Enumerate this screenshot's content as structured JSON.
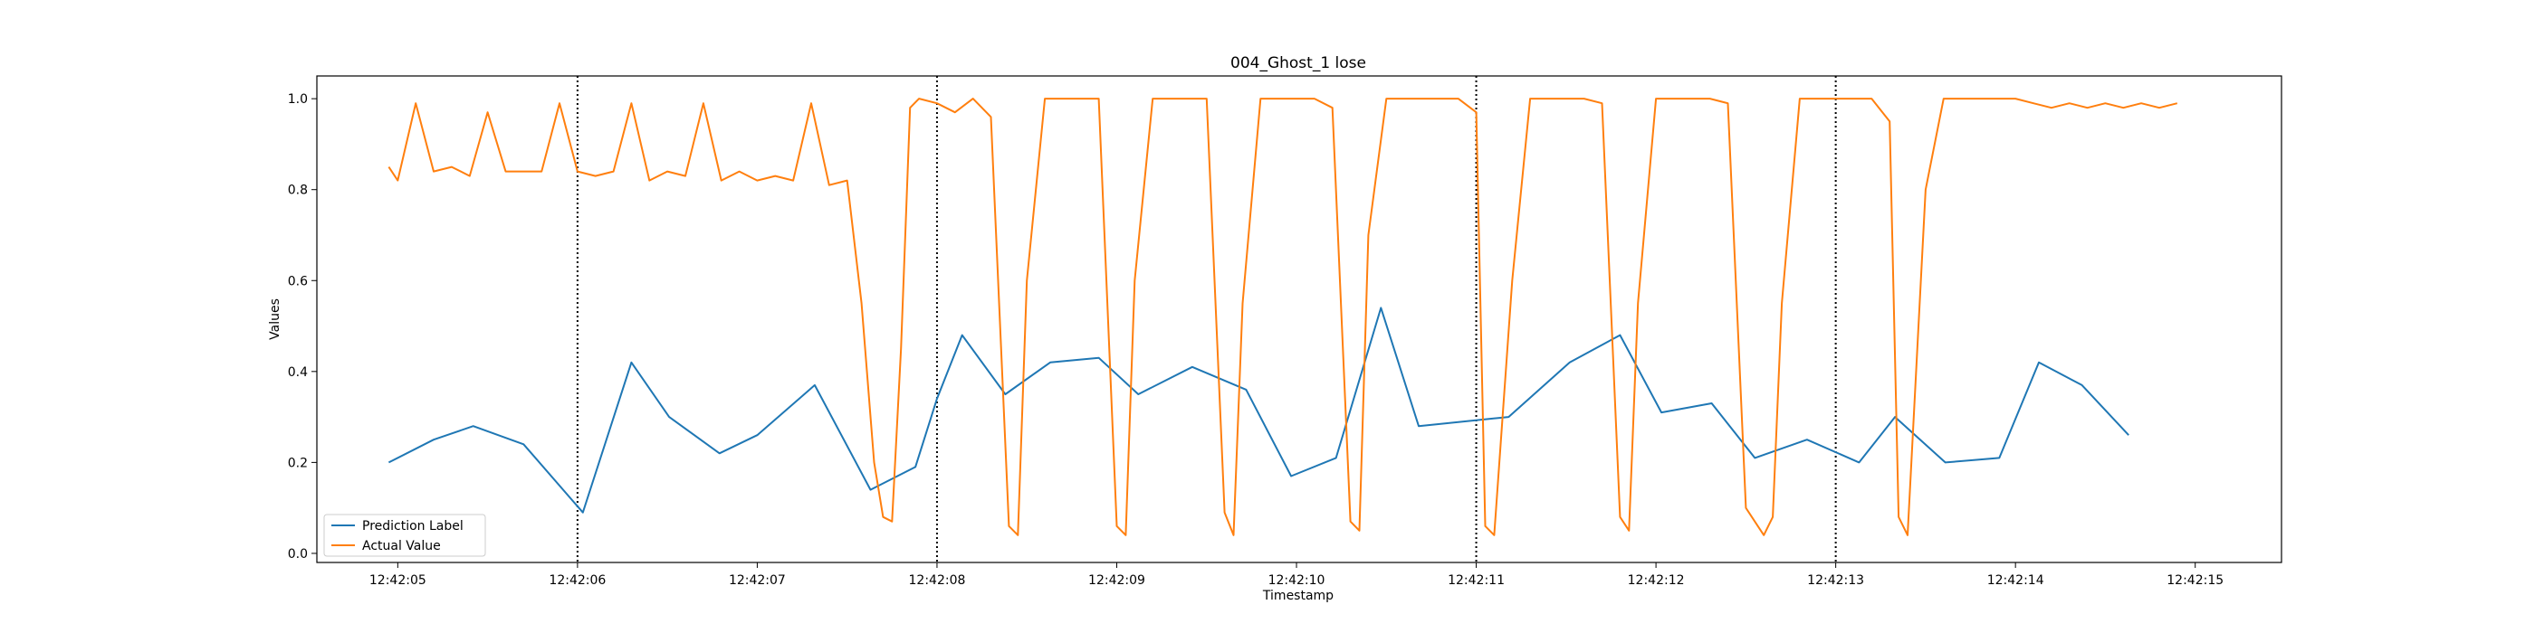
{
  "chart_data": {
    "type": "line",
    "title": "004_Ghost_1 lose",
    "xlabel": "Timestamp",
    "ylabel": "Values",
    "xlim": [
      "12:42:04.55",
      "12:42:15.48"
    ],
    "ylim": [
      -0.02,
      1.05
    ],
    "x_ticks": [
      "12:42:05",
      "12:42:06",
      "12:42:07",
      "12:42:08",
      "12:42:09",
      "12:42:10",
      "12:42:11",
      "12:42:12",
      "12:42:13",
      "12:42:14",
      "12:42:15"
    ],
    "y_ticks": [
      "0.0",
      "0.2",
      "0.4",
      "0.6",
      "0.8",
      "1.0"
    ],
    "vlines": [
      "12:42:06",
      "12:42:08",
      "12:42:11",
      "12:42:13"
    ],
    "legend_position": "lower-left",
    "grid": false,
    "series": [
      {
        "name": "Prediction Label",
        "color": "#1f77b4",
        "x": [
          "12:42:04.95",
          "12:42:05.20",
          "12:42:05.42",
          "12:42:05.70",
          "12:42:06.03",
          "12:42:06.30",
          "12:42:06.51",
          "12:42:06.79",
          "12:42:07.00",
          "12:42:07.32",
          "12:42:07.63",
          "12:42:07.88",
          "12:42:08.00",
          "12:42:08.14",
          "12:42:08.38",
          "12:42:08.63",
          "12:42:08.90",
          "12:42:09.12",
          "12:42:09.42",
          "12:42:09.72",
          "12:42:09.97",
          "12:42:10.22",
          "12:42:10.47",
          "12:42:10.68",
          "12:42:11.18",
          "12:42:11.52",
          "12:42:11.80",
          "12:42:12.03",
          "12:42:12.31",
          "12:42:12.55",
          "12:42:12.84",
          "12:42:13.13",
          "12:42:13.33",
          "12:42:13.61",
          "12:42:13.91",
          "12:42:14.13",
          "12:42:14.37",
          "12:42:14.63"
        ],
        "values": [
          0.2,
          0.25,
          0.28,
          0.24,
          0.09,
          0.42,
          0.3,
          0.22,
          0.26,
          0.37,
          0.14,
          0.19,
          0.34,
          0.48,
          0.35,
          0.42,
          0.43,
          0.35,
          0.41,
          0.36,
          0.17,
          0.21,
          0.54,
          0.28,
          0.3,
          0.42,
          0.48,
          0.31,
          0.33,
          0.21,
          0.25,
          0.2,
          0.3,
          0.2,
          0.21,
          0.42,
          0.37,
          0.26
        ]
      },
      {
        "name": "Actual Value",
        "color": "#ff7f0e",
        "x": [
          "12:42:04.95",
          "12:42:05.00",
          "12:42:05.10",
          "12:42:05.20",
          "12:42:05.30",
          "12:42:05.40",
          "12:42:05.50",
          "12:42:05.60",
          "12:42:05.70",
          "12:42:05.80",
          "12:42:05.90",
          "12:42:06.00",
          "12:42:06.10",
          "12:42:06.20",
          "12:42:06.30",
          "12:42:06.40",
          "12:42:06.50",
          "12:42:06.60",
          "12:42:06.70",
          "12:42:06.80",
          "12:42:06.90",
          "12:42:07.00",
          "12:42:07.10",
          "12:42:07.20",
          "12:42:07.30",
          "12:42:07.40",
          "12:42:07.50",
          "12:42:07.58",
          "12:42:07.65",
          "12:42:07.70",
          "12:42:07.75",
          "12:42:07.80",
          "12:42:07.85",
          "12:42:07.90",
          "12:42:08.00",
          "12:42:08.10",
          "12:42:08.20",
          "12:42:08.30",
          "12:42:08.40",
          "12:42:08.45",
          "12:42:08.50",
          "12:42:08.60",
          "12:42:08.70",
          "12:42:08.80",
          "12:42:08.90",
          "12:42:09.00",
          "12:42:09.05",
          "12:42:09.10",
          "12:42:09.20",
          "12:42:09.30",
          "12:42:09.40",
          "12:42:09.50",
          "12:42:09.60",
          "12:42:09.65",
          "12:42:09.70",
          "12:42:09.80",
          "12:42:09.90",
          "12:42:10.00",
          "12:42:10.10",
          "12:42:10.20",
          "12:42:10.30",
          "12:42:10.35",
          "12:42:10.40",
          "12:42:10.50",
          "12:42:10.60",
          "12:42:10.70",
          "12:42:10.80",
          "12:42:10.90",
          "12:42:11.00",
          "12:42:11.05",
          "12:42:11.10",
          "12:42:11.20",
          "12:42:11.30",
          "12:42:11.40",
          "12:42:11.50",
          "12:42:11.60",
          "12:42:11.70",
          "12:42:11.80",
          "12:42:11.85",
          "12:42:11.90",
          "12:42:12.00",
          "12:42:12.10",
          "12:42:12.20",
          "12:42:12.30",
          "12:42:12.40",
          "12:42:12.50",
          "12:42:12.60",
          "12:42:12.65",
          "12:42:12.70",
          "12:42:12.80",
          "12:42:12.90",
          "12:42:13.00",
          "12:42:13.10",
          "12:42:13.20",
          "12:42:13.30",
          "12:42:13.35",
          "12:42:13.40",
          "12:42:13.50",
          "12:42:13.60",
          "12:42:13.70",
          "12:42:13.80",
          "12:42:13.90",
          "12:42:14.00",
          "12:42:14.10",
          "12:42:14.20",
          "12:42:14.30",
          "12:42:14.40",
          "12:42:14.50",
          "12:42:14.60",
          "12:42:14.70",
          "12:42:14.80",
          "12:42:14.90"
        ],
        "values": [
          0.85,
          0.82,
          0.99,
          0.84,
          0.85,
          0.83,
          0.97,
          0.84,
          0.84,
          0.84,
          0.99,
          0.84,
          0.83,
          0.84,
          0.99,
          0.82,
          0.84,
          0.83,
          0.99,
          0.82,
          0.84,
          0.82,
          0.83,
          0.82,
          0.99,
          0.81,
          0.82,
          0.55,
          0.2,
          0.08,
          0.07,
          0.45,
          0.98,
          1.0,
          0.99,
          0.97,
          1.0,
          0.96,
          0.06,
          0.04,
          0.6,
          1.0,
          1.0,
          1.0,
          1.0,
          0.06,
          0.04,
          0.6,
          1.0,
          1.0,
          1.0,
          1.0,
          0.09,
          0.04,
          0.55,
          1.0,
          1.0,
          1.0,
          1.0,
          0.98,
          0.07,
          0.05,
          0.7,
          1.0,
          1.0,
          1.0,
          1.0,
          1.0,
          0.97,
          0.06,
          0.04,
          0.6,
          1.0,
          1.0,
          1.0,
          1.0,
          0.99,
          0.08,
          0.05,
          0.55,
          1.0,
          1.0,
          1.0,
          1.0,
          0.99,
          0.1,
          0.04,
          0.08,
          0.55,
          1.0,
          1.0,
          1.0,
          1.0,
          1.0,
          0.95,
          0.08,
          0.04,
          0.8,
          1.0,
          1.0,
          1.0,
          1.0,
          1.0,
          0.99,
          0.98,
          0.99,
          0.98,
          0.99,
          0.98,
          0.99,
          0.98,
          0.99
        ]
      }
    ]
  }
}
